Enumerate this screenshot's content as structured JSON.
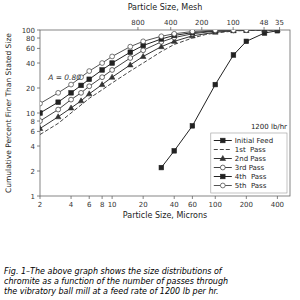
{
  "chart_data": {
    "type": "line",
    "x2label": "Particle Size, Mesh",
    "xlabel": "Particle Size, Microns",
    "ylabel": "Cumulative Percent Finer Than Stated Size",
    "caption": "Fig. 1–The above graph shows the size distributions of\nchromite as a function of the number of passes through\nthe vibratory ball mill at a feed rate of 1200 lb per hr.",
    "annotations": [
      {
        "text": "A = 0.80",
        "x": 2.4,
        "y": 25
      },
      {
        "text": "1200 lb/hr"
      }
    ],
    "log": true,
    "grid": false,
    "legend": "lower right",
    "xlim": [
      2,
      530
    ],
    "ylim": [
      1,
      100
    ],
    "x2lim": [
      2,
      530
    ],
    "xticks": [
      2,
      4,
      6,
      8,
      10,
      20,
      40,
      60,
      100,
      200,
      400
    ],
    "yticks": [
      1,
      2,
      4,
      6,
      8,
      10,
      20,
      40,
      60,
      80,
      100
    ],
    "x2ticks": [
      {
        "value": 17.8,
        "label": "800"
      },
      {
        "value": 37,
        "label": "400"
      },
      {
        "value": 74,
        "label": "200"
      },
      {
        "value": 149,
        "label": "100"
      },
      {
        "value": 297,
        "label": "48"
      },
      {
        "value": 420,
        "label": "35"
      }
    ],
    "series": [
      {
        "name": "Initial Feed",
        "color": "#222222",
        "marker": "square",
        "line_style": "solid",
        "x": [
          30,
          40,
          60,
          100,
          150,
          200,
          300,
          400
        ],
        "values": [
          2.2,
          3.5,
          7.0,
          22.0,
          50.0,
          73.0,
          92.0,
          98.0
        ]
      },
      {
        "name": "1st  Pass",
        "color": "#444444",
        "marker": "none",
        "line_style": "dashed",
        "x": [
          2,
          3,
          4,
          5,
          6,
          8,
          10,
          15,
          20,
          30,
          40,
          60,
          80,
          100,
          150,
          200,
          300,
          400
        ],
        "values": [
          5.5,
          7.5,
          10.0,
          12.5,
          15.0,
          19.0,
          23.0,
          32.0,
          40.0,
          55.0,
          67.0,
          80.0,
          88.0,
          92.0,
          97.0,
          99.0,
          99.5,
          99.8
        ]
      },
      {
        "name": "2nd Pass",
        "color": "#333333",
        "marker": "triangle",
        "line_style": "solid",
        "x": [
          2,
          3,
          4,
          5,
          6,
          8,
          10,
          15,
          20,
          30,
          40,
          60,
          100,
          150,
          200,
          300,
          400
        ],
        "values": [
          6.5,
          9.0,
          11.5,
          14.0,
          17.0,
          22.0,
          27.0,
          38.0,
          48.0,
          63.0,
          73.0,
          85.0,
          94.0,
          98.0,
          99.2,
          99.7,
          99.9
        ]
      },
      {
        "name": "3rd Pass",
        "color": "#444444",
        "marker": "open-circle",
        "line_style": "solid",
        "x": [
          2,
          3,
          4,
          5,
          6,
          8,
          10,
          15,
          20,
          30,
          40,
          60,
          100,
          150,
          200
        ],
        "values": [
          8.0,
          11.0,
          14.5,
          17.5,
          21.0,
          27.0,
          33.0,
          46.0,
          57.0,
          72.0,
          81.0,
          90.0,
          97.0,
          99.0,
          99.5
        ]
      },
      {
        "name": "4th  Pass",
        "color": "#222222",
        "marker": "square",
        "line_style": "solid",
        "x": [
          2,
          3,
          4,
          5,
          6,
          8,
          10,
          15,
          20,
          30,
          40,
          60,
          100,
          150,
          200
        ],
        "values": [
          10.0,
          13.5,
          17.5,
          21.5,
          25.5,
          33.0,
          40.0,
          54.0,
          65.0,
          78.0,
          86.0,
          93.0,
          98.0,
          99.3,
          99.7
        ]
      },
      {
        "name": "5th  Pass",
        "color": "#555555",
        "marker": "open-circle",
        "line_style": "solid",
        "x": [
          2,
          3,
          4,
          5,
          6,
          8,
          10,
          15,
          20,
          30,
          40,
          60,
          100,
          150,
          200
        ],
        "values": [
          13.0,
          17.5,
          22.0,
          27.0,
          32.0,
          40.0,
          48.0,
          63.0,
          73.0,
          84.0,
          90.0,
          96.0,
          99.0,
          99.5,
          99.8
        ]
      }
    ]
  }
}
